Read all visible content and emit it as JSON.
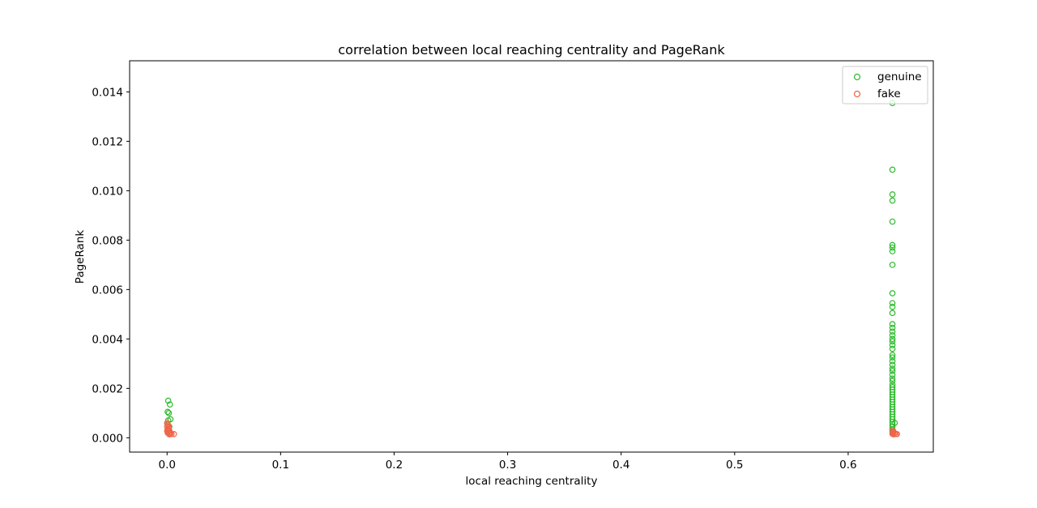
{
  "chart_data": {
    "type": "scatter",
    "title": "correlation between local reaching centrality and PageRank",
    "xlabel": "local reaching centrality",
    "ylabel": "PageRank",
    "xlim": [
      -0.033,
      0.675
    ],
    "ylim": [
      -0.00058,
      0.01526
    ],
    "xticks": [
      0.0,
      0.1,
      0.2,
      0.3,
      0.4,
      0.5,
      0.6
    ],
    "xtick_labels": [
      "0.0",
      "0.1",
      "0.2",
      "0.3",
      "0.4",
      "0.5",
      "0.6"
    ],
    "yticks": [
      0.0,
      0.002,
      0.004,
      0.006,
      0.008,
      0.01,
      0.012,
      0.014
    ],
    "ytick_labels": [
      "0.000",
      "0.002",
      "0.004",
      "0.006",
      "0.008",
      "0.010",
      "0.012",
      "0.014"
    ],
    "grid": false,
    "legend_position": "top-right",
    "marker": "hollow-circle",
    "series": [
      {
        "name": "genuine",
        "color": "#2dbb2d",
        "points": [
          [
            0.001,
            0.0015
          ],
          [
            0.0025,
            0.00135
          ],
          [
            0.0005,
            0.00105
          ],
          [
            0.0015,
            0.001
          ],
          [
            0.003,
            0.00075
          ],
          [
            0.001,
            0.0007
          ],
          [
            0.0005,
            0.00055
          ],
          [
            0.002,
            0.00045
          ],
          [
            0.639,
            0.01355
          ],
          [
            0.639,
            0.01085
          ],
          [
            0.639,
            0.00985
          ],
          [
            0.639,
            0.0096
          ],
          [
            0.639,
            0.00875
          ],
          [
            0.639,
            0.0078
          ],
          [
            0.639,
            0.0077
          ],
          [
            0.639,
            0.00755
          ],
          [
            0.639,
            0.007
          ],
          [
            0.639,
            0.00585
          ],
          [
            0.639,
            0.00545
          ],
          [
            0.639,
            0.0053
          ],
          [
            0.639,
            0.00505
          ],
          [
            0.639,
            0.0046
          ],
          [
            0.639,
            0.00445
          ],
          [
            0.639,
            0.0043
          ],
          [
            0.639,
            0.00415
          ],
          [
            0.639,
            0.004
          ],
          [
            0.639,
            0.0039
          ],
          [
            0.639,
            0.00375
          ],
          [
            0.639,
            0.0036
          ],
          [
            0.639,
            0.00335
          ],
          [
            0.639,
            0.00325
          ],
          [
            0.639,
            0.0031
          ],
          [
            0.639,
            0.00295
          ],
          [
            0.639,
            0.0028
          ],
          [
            0.639,
            0.0027
          ],
          [
            0.639,
            0.00255
          ],
          [
            0.639,
            0.0024
          ],
          [
            0.639,
            0.0023
          ],
          [
            0.639,
            0.00215
          ],
          [
            0.639,
            0.00205
          ],
          [
            0.639,
            0.00195
          ],
          [
            0.639,
            0.00185
          ],
          [
            0.639,
            0.00175
          ],
          [
            0.639,
            0.00165
          ],
          [
            0.639,
            0.00155
          ],
          [
            0.639,
            0.00145
          ],
          [
            0.639,
            0.00135
          ],
          [
            0.639,
            0.00125
          ],
          [
            0.639,
            0.00115
          ],
          [
            0.639,
            0.00105
          ],
          [
            0.639,
            0.00095
          ],
          [
            0.639,
            0.00085
          ],
          [
            0.639,
            0.00075
          ],
          [
            0.639,
            0.00065
          ],
          [
            0.639,
            0.00055
          ],
          [
            0.639,
            0.00045
          ],
          [
            0.639,
            0.00035
          ],
          [
            0.639,
            0.00025
          ],
          [
            0.641,
            0.0006
          ]
        ]
      },
      {
        "name": "fake",
        "color": "#f0644a",
        "points": [
          [
            0.0,
            0.0006
          ],
          [
            0.0005,
            0.00055
          ],
          [
            0.001,
            0.0005
          ],
          [
            0.0,
            0.00045
          ],
          [
            0.0015,
            0.0004
          ],
          [
            0.0005,
            0.00035
          ],
          [
            0.002,
            0.0003
          ],
          [
            0.0,
            0.00028
          ],
          [
            0.001,
            0.00025
          ],
          [
            0.0025,
            0.00022
          ],
          [
            0.0005,
            0.0002
          ],
          [
            0.003,
            0.00018
          ],
          [
            0.0015,
            0.00016
          ],
          [
            0.004,
            0.00015
          ],
          [
            0.006,
            0.00015
          ],
          [
            0.002,
            0.00014
          ],
          [
            0.639,
            0.0003
          ],
          [
            0.64,
            0.00025
          ],
          [
            0.6395,
            0.0002
          ],
          [
            0.641,
            0.00018
          ],
          [
            0.639,
            0.00016
          ],
          [
            0.642,
            0.00015
          ],
          [
            0.64,
            0.00014
          ],
          [
            0.643,
            0.00015
          ]
        ]
      }
    ]
  }
}
